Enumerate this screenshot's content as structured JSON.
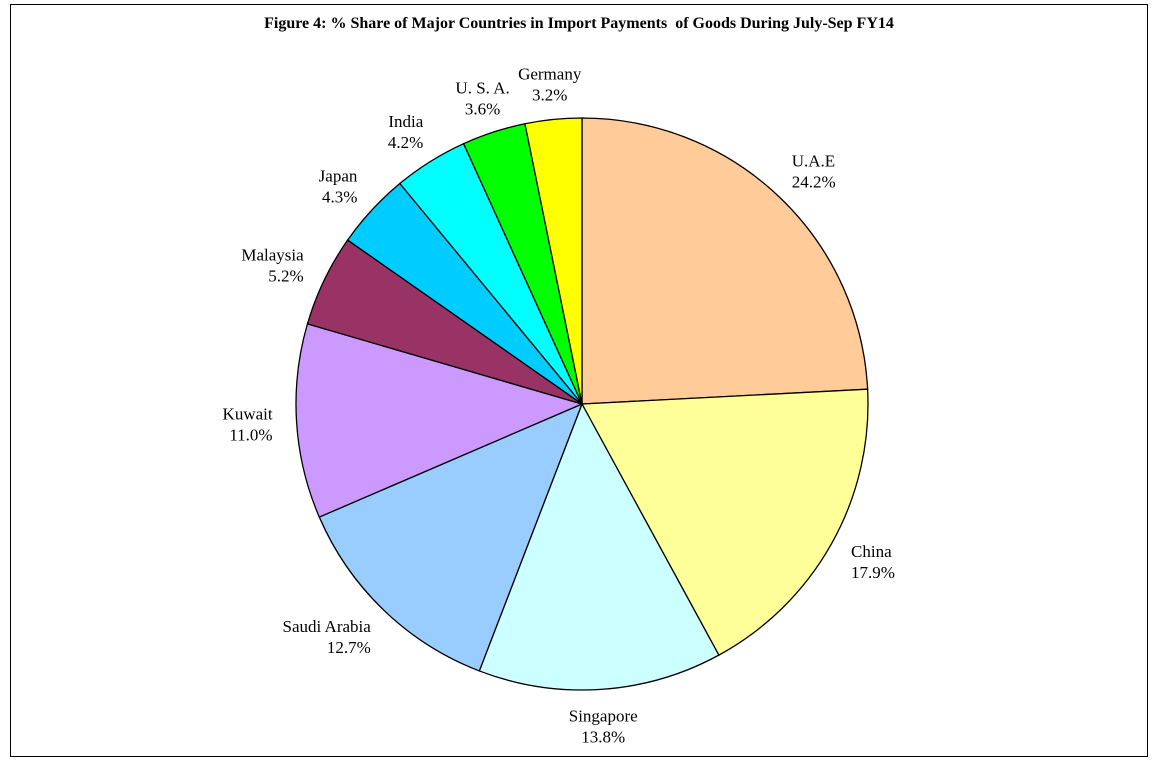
{
  "chart_data": {
    "type": "pie",
    "title": "Figure 4: % Share of Major Countries in Import Payments  of Goods During July-Sep FY14",
    "start_angle_deg": 0,
    "direction": "clockwise",
    "slices": [
      {
        "label": "U.A.E",
        "value": 24.2,
        "value_label": "24.2%",
        "color": "#FFCC99"
      },
      {
        "label": "China",
        "value": 17.9,
        "value_label": "17.9%",
        "color": "#FFFF99"
      },
      {
        "label": "Singapore",
        "value": 13.8,
        "value_label": "13.8%",
        "color": "#CCFFFF"
      },
      {
        "label": "Saudi Arabia",
        "value": 12.7,
        "value_label": "12.7%",
        "color": "#99CCFF"
      },
      {
        "label": "Kuwait",
        "value": 11.0,
        "value_label": "11.0%",
        "color": "#CC99FF"
      },
      {
        "label": "Malaysia",
        "value": 5.2,
        "value_label": "5.2%",
        "color": "#993366"
      },
      {
        "label": "Japan",
        "value": 4.3,
        "value_label": "4.3%",
        "color": "#00CCFF"
      },
      {
        "label": "India",
        "value": 4.2,
        "value_label": "4.2%",
        "color": "#00FFFF"
      },
      {
        "label": "U. S. A.",
        "value": 3.6,
        "value_label": "3.6%",
        "color": "#00FF00"
      },
      {
        "label": "Germany",
        "value": 3.2,
        "value_label": "3.2%",
        "color": "#FFFF00"
      }
    ]
  }
}
